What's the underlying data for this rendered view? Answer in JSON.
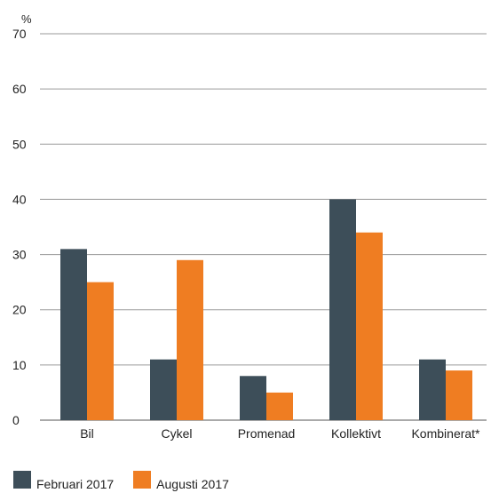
{
  "chart_data": {
    "type": "bar",
    "title": "",
    "xlabel": "",
    "ylabel": "%",
    "ylim": [
      0,
      70
    ],
    "yticks": [
      0,
      10,
      20,
      30,
      40,
      50,
      60,
      70
    ],
    "grid": true,
    "legend_position": "bottom-left",
    "categories": [
      "Bil",
      "Cykel",
      "Promenad",
      "Kollektivt",
      "Kombinerat*"
    ],
    "series": [
      {
        "name": "Februari 2017",
        "color": "#3d4e59",
        "values": [
          31,
          11,
          8,
          40,
          11
        ]
      },
      {
        "name": "Augusti 2017",
        "color": "#ef7d22",
        "values": [
          25,
          29,
          5,
          34,
          9
        ]
      }
    ]
  }
}
